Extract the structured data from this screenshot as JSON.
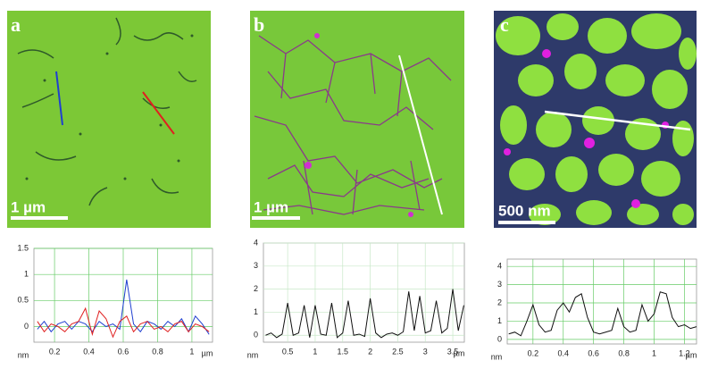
{
  "panels": [
    {
      "label": "a",
      "scale": "1 µm"
    },
    {
      "label": "b",
      "scale": "1 µm"
    },
    {
      "label": "c",
      "scale": "500 nm"
    }
  ],
  "chart_data": [
    {
      "type": "line",
      "ylabel": "nm",
      "xlabel": "µm",
      "xlim": [
        0.08,
        1.12
      ],
      "ylim": [
        -0.3,
        1.5
      ],
      "xticks": [
        0.2,
        0.4,
        0.6,
        0.8,
        1
      ],
      "yticks": [
        0,
        0.5,
        1,
        1.5
      ],
      "grid": true,
      "grid_color": "#66cc66",
      "x": [
        0.1,
        0.14,
        0.18,
        0.22,
        0.26,
        0.3,
        0.34,
        0.38,
        0.42,
        0.46,
        0.5,
        0.54,
        0.58,
        0.62,
        0.66,
        0.7,
        0.74,
        0.78,
        0.82,
        0.86,
        0.9,
        0.94,
        0.98,
        1.02,
        1.06,
        1.1
      ],
      "series": [
        {
          "color": "#1f3fd0",
          "values": [
            -0.05,
            0.1,
            -0.1,
            0.05,
            0.1,
            -0.05,
            0.1,
            0.05,
            -0.1,
            0.1,
            0.0,
            0.05,
            -0.05,
            0.9,
            0.05,
            -0.1,
            0.1,
            0.05,
            -0.05,
            0.1,
            0.0,
            0.15,
            -0.1,
            0.2,
            0.05,
            -0.15
          ]
        },
        {
          "color": "#e02020",
          "values": [
            0.1,
            -0.1,
            0.05,
            0.0,
            -0.1,
            0.05,
            0.1,
            0.35,
            -0.15,
            0.3,
            0.15,
            -0.2,
            0.1,
            0.2,
            -0.1,
            0.05,
            0.1,
            -0.05,
            0.0,
            -0.1,
            0.05,
            0.1,
            -0.1,
            0.05,
            0.0,
            -0.1
          ]
        }
      ]
    },
    {
      "type": "line",
      "ylabel": "nm",
      "xlabel": "µm",
      "xlim": [
        0.06,
        3.71
      ],
      "ylim": [
        -0.3,
        4
      ],
      "xticks": [
        0.5,
        1,
        1.5,
        2,
        2.5,
        3,
        3.5
      ],
      "yticks": [
        0,
        1,
        2,
        3,
        4
      ],
      "grid": true,
      "grid_color": "#c8e8c8",
      "x": [
        0.1,
        0.2,
        0.3,
        0.4,
        0.5,
        0.6,
        0.7,
        0.8,
        0.9,
        1.0,
        1.1,
        1.2,
        1.3,
        1.4,
        1.5,
        1.6,
        1.7,
        1.8,
        1.9,
        2.0,
        2.1,
        2.2,
        2.3,
        2.4,
        2.5,
        2.6,
        2.7,
        2.8,
        2.9,
        3.0,
        3.1,
        3.2,
        3.3,
        3.4,
        3.5,
        3.6,
        3.7
      ],
      "series": [
        {
          "color": "#111111",
          "values": [
            0,
            0.1,
            -0.1,
            0.05,
            1.4,
            0,
            0.1,
            1.3,
            -0.1,
            1.3,
            0.05,
            0,
            1.4,
            -0.1,
            0.1,
            1.5,
            0,
            0.05,
            -0.05,
            1.6,
            0.1,
            -0.1,
            0.05,
            0.1,
            0,
            0.15,
            1.9,
            0.2,
            1.7,
            0.1,
            0.2,
            1.5,
            0.1,
            0.3,
            2.0,
            0.2,
            1.3
          ]
        }
      ]
    },
    {
      "type": "line",
      "ylabel": "nm",
      "xlabel": "µm",
      "xlim": [
        0.03,
        1.28
      ],
      "ylim": [
        -0.25,
        4.4
      ],
      "xticks": [
        0.2,
        0.4,
        0.6,
        0.8,
        1,
        1.2
      ],
      "yticks": [
        0,
        1,
        2,
        3,
        4
      ],
      "grid": true,
      "grid_color": "#66cc66",
      "x": [
        0.04,
        0.08,
        0.12,
        0.16,
        0.2,
        0.24,
        0.28,
        0.32,
        0.36,
        0.4,
        0.44,
        0.48,
        0.52,
        0.56,
        0.6,
        0.64,
        0.68,
        0.72,
        0.76,
        0.8,
        0.84,
        0.88,
        0.92,
        0.96,
        1.0,
        1.04,
        1.08,
        1.12,
        1.16,
        1.2,
        1.24,
        1.28
      ],
      "series": [
        {
          "color": "#111111",
          "values": [
            0.3,
            0.4,
            0.2,
            1.0,
            1.9,
            0.8,
            0.4,
            0.5,
            1.6,
            2.0,
            1.5,
            2.3,
            2.5,
            1.2,
            0.4,
            0.3,
            0.4,
            0.5,
            1.7,
            0.7,
            0.4,
            0.5,
            1.9,
            1.0,
            1.4,
            2.6,
            2.5,
            1.2,
            0.7,
            0.8,
            0.6,
            0.7
          ]
        }
      ]
    }
  ]
}
